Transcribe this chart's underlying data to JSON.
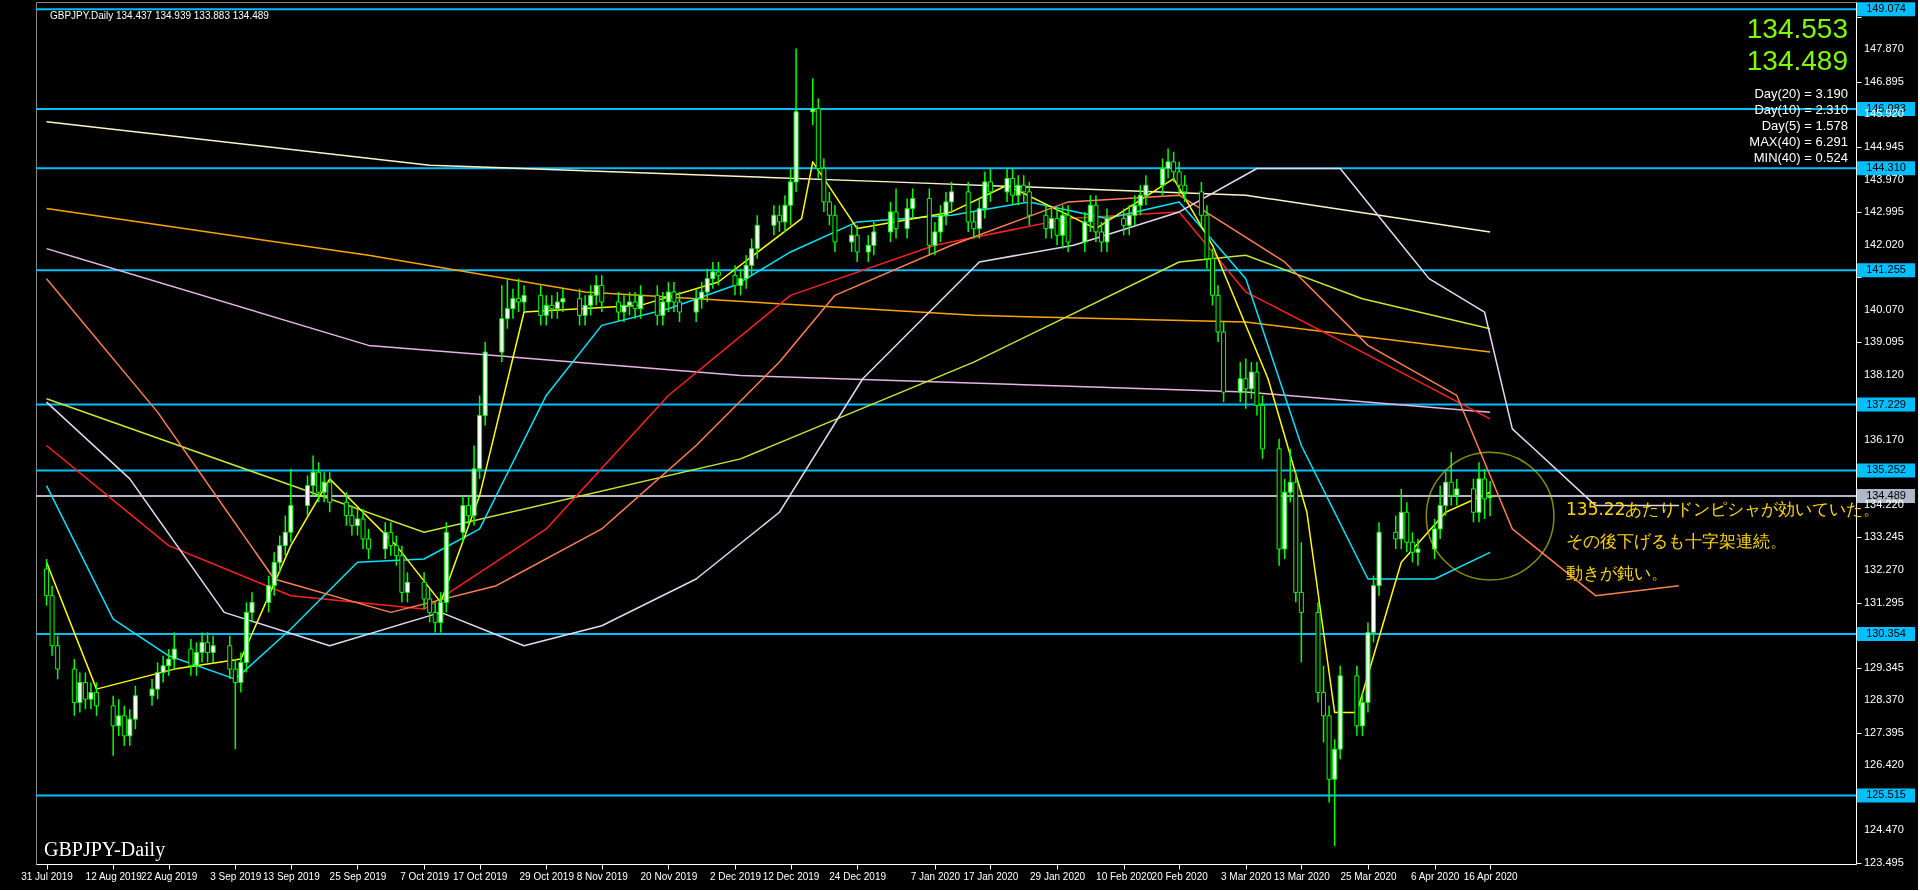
{
  "chart_data": {
    "type": "candlestick",
    "title": "GBPJPY.Daily  134.437 134.939 133.883 134.489",
    "x": [
      "2019-07-31",
      "2019-08-01",
      "2019-08-02",
      "2019-08-05",
      "2019-08-06",
      "2019-08-07",
      "2019-08-08",
      "2019-08-09",
      "2019-08-12",
      "2019-08-13",
      "2019-08-14",
      "2019-08-15",
      "2019-08-16",
      "2019-08-19",
      "2019-08-20",
      "2019-08-21",
      "2019-08-22",
      "2019-08-23",
      "2019-08-26",
      "2019-08-27",
      "2019-08-28",
      "2019-08-29",
      "2019-08-30",
      "2019-09-02",
      "2019-09-03",
      "2019-09-04",
      "2019-09-05",
      "2019-09-06",
      "2019-09-09",
      "2019-09-10",
      "2019-09-11",
      "2019-09-12",
      "2019-09-13",
      "2019-09-16",
      "2019-09-17",
      "2019-09-18",
      "2019-09-19",
      "2019-09-20",
      "2019-09-23",
      "2019-09-24",
      "2019-09-25",
      "2019-09-26",
      "2019-09-27",
      "2019-09-30",
      "2019-10-01",
      "2019-10-02",
      "2019-10-03",
      "2019-10-04",
      "2019-10-07",
      "2019-10-08",
      "2019-10-09",
      "2019-10-10",
      "2019-10-11",
      "2019-10-14",
      "2019-10-15",
      "2019-10-16",
      "2019-10-17",
      "2019-10-18",
      "2019-10-21",
      "2019-10-22",
      "2019-10-23",
      "2019-10-24",
      "2019-10-25",
      "2019-10-28",
      "2019-10-29",
      "2019-10-30",
      "2019-10-31",
      "2019-11-01",
      "2019-11-04",
      "2019-11-05",
      "2019-11-06",
      "2019-11-07",
      "2019-11-08",
      "2019-11-11",
      "2019-11-12",
      "2019-11-13",
      "2019-11-14",
      "2019-11-15",
      "2019-11-18",
      "2019-11-19",
      "2019-11-20",
      "2019-11-21",
      "2019-11-22",
      "2019-11-25",
      "2019-11-26",
      "2019-11-27",
      "2019-11-28",
      "2019-11-29",
      "2019-12-02",
      "2019-12-03",
      "2019-12-04",
      "2019-12-05",
      "2019-12-06",
      "2019-12-09",
      "2019-12-10",
      "2019-12-11",
      "2019-12-12",
      "2019-12-13",
      "2019-12-16",
      "2019-12-17",
      "2019-12-18",
      "2019-12-19",
      "2019-12-20",
      "2019-12-23",
      "2019-12-24",
      "2019-12-26",
      "2019-12-27",
      "2019-12-30",
      "2019-12-31",
      "2020-01-02",
      "2020-01-03",
      "2020-01-06",
      "2020-01-07",
      "2020-01-08",
      "2020-01-09",
      "2020-01-10",
      "2020-01-13",
      "2020-01-14",
      "2020-01-15",
      "2020-01-16",
      "2020-01-17",
      "2020-01-20",
      "2020-01-21",
      "2020-01-22",
      "2020-01-23",
      "2020-01-24",
      "2020-01-27",
      "2020-01-28",
      "2020-01-29",
      "2020-01-30",
      "2020-01-31",
      "2020-02-03",
      "2020-02-04",
      "2020-02-05",
      "2020-02-06",
      "2020-02-07",
      "2020-02-10",
      "2020-02-11",
      "2020-02-12",
      "2020-02-13",
      "2020-02-14",
      "2020-02-17",
      "2020-02-18",
      "2020-02-19",
      "2020-02-20",
      "2020-02-21",
      "2020-02-24",
      "2020-02-25",
      "2020-02-26",
      "2020-02-27",
      "2020-02-28",
      "2020-03-02",
      "2020-03-03",
      "2020-03-04",
      "2020-03-05",
      "2020-03-06",
      "2020-03-09",
      "2020-03-10",
      "2020-03-11",
      "2020-03-12",
      "2020-03-13",
      "2020-03-16",
      "2020-03-17",
      "2020-03-18",
      "2020-03-19",
      "2020-03-20",
      "2020-03-23",
      "2020-03-24",
      "2020-03-25",
      "2020-03-26",
      "2020-03-27",
      "2020-03-30",
      "2020-03-31",
      "2020-04-01",
      "2020-04-02",
      "2020-04-03",
      "2020-04-06",
      "2020-04-07",
      "2020-04-08",
      "2020-04-09",
      "2020-04-10",
      "2020-04-13",
      "2020-04-14",
      "2020-04-15",
      "2020-04-16"
    ],
    "ohlc": [
      [
        132.3,
        132.6,
        131.2,
        131.5
      ],
      [
        131.5,
        131.8,
        129.7,
        130.0
      ],
      [
        130.0,
        130.3,
        129.0,
        129.3
      ],
      [
        129.3,
        129.6,
        127.9,
        128.3
      ],
      [
        128.3,
        129.2,
        128.0,
        128.9
      ],
      [
        128.9,
        129.2,
        128.1,
        128.4
      ],
      [
        128.4,
        128.9,
        128.1,
        128.6
      ],
      [
        128.6,
        128.9,
        127.9,
        128.2
      ],
      [
        128.2,
        128.5,
        126.7,
        127.6
      ],
      [
        127.6,
        128.4,
        127.3,
        127.9
      ],
      [
        127.9,
        128.2,
        127.0,
        127.3
      ],
      [
        127.3,
        128.1,
        127.0,
        127.8
      ],
      [
        127.8,
        128.8,
        127.5,
        128.5
      ],
      [
        128.5,
        129.0,
        128.2,
        128.7
      ],
      [
        128.7,
        129.5,
        128.4,
        129.2
      ],
      [
        129.2,
        129.7,
        128.9,
        129.4
      ],
      [
        129.4,
        129.9,
        129.1,
        129.6
      ],
      [
        129.6,
        130.4,
        129.3,
        129.9
      ],
      [
        129.9,
        130.2,
        129.1,
        129.4
      ],
      [
        129.4,
        130.1,
        129.1,
        129.8
      ],
      [
        129.8,
        130.4,
        129.5,
        130.1
      ],
      [
        130.1,
        130.4,
        129.5,
        129.8
      ],
      [
        129.8,
        130.3,
        129.5,
        130.0
      ],
      [
        130.0,
        130.3,
        129.0,
        129.3
      ],
      [
        129.3,
        129.6,
        126.9,
        128.9
      ],
      [
        128.9,
        129.8,
        128.6,
        129.5
      ],
      [
        129.5,
        131.3,
        129.2,
        131.0
      ],
      [
        131.0,
        131.6,
        130.7,
        131.3
      ],
      [
        131.3,
        132.1,
        131.0,
        131.8
      ],
      [
        131.8,
        132.8,
        131.5,
        132.5
      ],
      [
        132.5,
        133.3,
        132.2,
        133.0
      ],
      [
        133.0,
        133.9,
        132.7,
        133.4
      ],
      [
        133.4,
        135.3,
        133.1,
        134.2
      ],
      [
        134.2,
        135.1,
        133.9,
        134.8
      ],
      [
        134.8,
        135.7,
        134.5,
        135.2
      ],
      [
        135.2,
        135.5,
        134.3,
        134.6
      ],
      [
        134.6,
        135.2,
        134.3,
        134.9
      ],
      [
        134.9,
        135.2,
        134.0,
        134.3
      ],
      [
        134.3,
        134.6,
        133.6,
        133.9
      ],
      [
        133.9,
        134.2,
        133.3,
        133.6
      ],
      [
        133.6,
        134.1,
        133.3,
        133.8
      ],
      [
        133.8,
        134.1,
        132.9,
        133.2
      ],
      [
        133.2,
        133.5,
        132.6,
        132.9
      ],
      [
        132.9,
        133.7,
        132.6,
        133.4
      ],
      [
        133.4,
        133.7,
        132.7,
        133.0
      ],
      [
        133.0,
        133.3,
        132.4,
        132.7
      ],
      [
        132.7,
        133.0,
        131.3,
        131.6
      ],
      [
        131.6,
        132.2,
        131.3,
        131.9
      ],
      [
        131.9,
        132.2,
        131.1,
        131.4
      ],
      [
        131.4,
        131.7,
        130.7,
        131.0
      ],
      [
        131.0,
        131.3,
        130.4,
        130.7
      ],
      [
        130.7,
        131.6,
        130.4,
        131.3
      ],
      [
        131.3,
        133.7,
        131.0,
        133.4
      ],
      [
        133.4,
        134.5,
        133.1,
        134.2
      ],
      [
        134.2,
        134.5,
        133.6,
        133.9
      ],
      [
        133.9,
        136.0,
        133.6,
        135.3
      ],
      [
        135.3,
        137.5,
        135.0,
        136.9
      ],
      [
        136.9,
        139.1,
        136.6,
        138.8
      ],
      [
        138.8,
        140.8,
        138.5,
        139.8
      ],
      [
        139.8,
        141.0,
        139.5,
        140.1
      ],
      [
        140.1,
        140.7,
        139.8,
        140.4
      ],
      [
        140.4,
        141.0,
        140.0,
        140.3
      ],
      [
        140.3,
        140.8,
        140.0,
        140.5
      ],
      [
        140.5,
        140.8,
        139.6,
        139.9
      ],
      [
        139.9,
        140.5,
        139.6,
        140.2
      ],
      [
        140.2,
        140.5,
        139.8,
        140.1
      ],
      [
        140.1,
        140.6,
        139.8,
        140.3
      ],
      [
        140.3,
        140.7,
        140.0,
        140.4
      ],
      [
        140.4,
        140.7,
        139.6,
        139.9
      ],
      [
        139.9,
        140.5,
        139.6,
        140.2
      ],
      [
        140.2,
        140.8,
        139.9,
        140.5
      ],
      [
        140.5,
        141.1,
        140.2,
        140.8
      ],
      [
        140.8,
        141.1,
        140.0,
        140.3
      ],
      [
        140.3,
        140.6,
        139.7,
        140.0
      ],
      [
        140.0,
        140.5,
        139.7,
        140.2
      ],
      [
        140.2,
        140.6,
        139.9,
        140.3
      ],
      [
        140.3,
        140.6,
        139.8,
        140.1
      ],
      [
        140.1,
        140.8,
        139.8,
        140.5
      ],
      [
        140.5,
        140.8,
        139.6,
        139.9
      ],
      [
        139.9,
        140.6,
        139.6,
        140.3
      ],
      [
        140.3,
        140.9,
        140.0,
        140.6
      ],
      [
        140.6,
        140.9,
        140.0,
        140.3
      ],
      [
        140.3,
        140.6,
        139.7,
        140.0
      ],
      [
        140.0,
        140.7,
        139.7,
        140.4
      ],
      [
        140.4,
        140.9,
        140.1,
        140.6
      ],
      [
        140.6,
        141.3,
        140.3,
        141.0
      ],
      [
        141.0,
        141.5,
        140.7,
        141.2
      ],
      [
        141.2,
        141.5,
        140.8,
        141.1
      ],
      [
        141.1,
        141.4,
        140.5,
        140.8
      ],
      [
        140.8,
        141.3,
        140.5,
        141.0
      ],
      [
        141.0,
        141.7,
        140.7,
        141.4
      ],
      [
        141.4,
        142.2,
        141.1,
        141.9
      ],
      [
        141.9,
        142.9,
        141.6,
        142.6
      ],
      [
        142.6,
        143.2,
        142.3,
        142.9
      ],
      [
        142.9,
        143.2,
        142.4,
        142.7
      ],
      [
        142.7,
        143.5,
        142.4,
        143.2
      ],
      [
        143.2,
        144.3,
        142.6,
        143.9
      ],
      [
        143.9,
        147.9,
        143.6,
        146.0
      ],
      [
        146.0,
        147.0,
        145.6,
        146.1
      ],
      [
        146.1,
        146.4,
        144.0,
        144.3
      ],
      [
        144.3,
        144.6,
        143.0,
        143.3
      ],
      [
        143.3,
        143.6,
        142.6,
        142.9
      ],
      [
        142.9,
        143.2,
        141.8,
        142.1
      ],
      [
        142.1,
        142.6,
        141.8,
        142.3
      ],
      [
        142.3,
        142.6,
        141.5,
        141.8
      ],
      [
        141.8,
        142.3,
        141.5,
        142.0
      ],
      [
        142.0,
        142.7,
        141.7,
        142.4
      ],
      [
        142.4,
        143.3,
        142.1,
        143.0
      ],
      [
        143.0,
        143.7,
        142.2,
        142.5
      ],
      [
        142.5,
        143.4,
        142.2,
        143.1
      ],
      [
        143.1,
        143.7,
        142.8,
        143.4
      ],
      [
        143.4,
        143.7,
        141.7,
        142.0
      ],
      [
        142.0,
        142.7,
        141.7,
        142.4
      ],
      [
        142.4,
        143.2,
        142.1,
        142.9
      ],
      [
        142.9,
        143.6,
        142.6,
        143.3
      ],
      [
        143.3,
        143.9,
        143.0,
        143.6
      ],
      [
        143.6,
        143.9,
        142.4,
        142.7
      ],
      [
        142.7,
        143.0,
        142.2,
        142.5
      ],
      [
        142.5,
        143.4,
        142.2,
        143.1
      ],
      [
        143.1,
        144.2,
        142.8,
        143.9
      ],
      [
        143.9,
        144.3,
        143.3,
        143.6
      ],
      [
        143.6,
        144.3,
        143.3,
        144.0
      ],
      [
        144.0,
        144.3,
        143.2,
        143.5
      ],
      [
        143.5,
        144.1,
        143.2,
        143.8
      ],
      [
        143.8,
        144.1,
        143.3,
        143.6
      ],
      [
        143.6,
        143.9,
        142.6,
        142.9
      ],
      [
        142.9,
        143.2,
        142.2,
        142.5
      ],
      [
        142.5,
        143.1,
        142.2,
        142.8
      ],
      [
        142.8,
        143.1,
        142.0,
        142.3
      ],
      [
        142.3,
        143.2,
        141.9,
        142.9
      ],
      [
        142.9,
        143.2,
        141.8,
        142.1
      ],
      [
        142.1,
        143.0,
        141.8,
        142.7
      ],
      [
        142.7,
        143.5,
        142.4,
        143.2
      ],
      [
        143.2,
        143.5,
        142.1,
        142.4
      ],
      [
        142.4,
        142.7,
        141.8,
        142.1
      ],
      [
        142.1,
        143.1,
        141.8,
        142.8
      ],
      [
        142.8,
        143.1,
        142.3,
        142.6
      ],
      [
        142.6,
        143.2,
        142.3,
        142.9
      ],
      [
        142.9,
        143.5,
        142.6,
        143.2
      ],
      [
        143.2,
        143.8,
        142.9,
        143.5
      ],
      [
        143.5,
        144.1,
        143.2,
        143.8
      ],
      [
        143.8,
        144.6,
        143.5,
        144.3
      ],
      [
        144.3,
        144.9,
        144.0,
        144.5
      ],
      [
        144.5,
        144.8,
        143.9,
        144.2
      ],
      [
        144.2,
        144.5,
        143.5,
        143.8
      ],
      [
        143.8,
        144.1,
        143.3,
        143.6
      ],
      [
        143.6,
        143.9,
        142.6,
        142.9
      ],
      [
        142.9,
        143.2,
        141.3,
        141.6
      ],
      [
        141.6,
        141.9,
        140.2,
        140.5
      ],
      [
        140.5,
        140.8,
        139.1,
        139.4
      ],
      [
        139.4,
        139.7,
        137.3,
        137.6
      ],
      [
        137.6,
        138.5,
        137.3,
        138.0
      ],
      [
        138.0,
        138.6,
        137.1,
        137.7
      ],
      [
        137.7,
        138.5,
        137.4,
        138.2
      ],
      [
        138.2,
        138.5,
        136.9,
        137.2
      ],
      [
        137.2,
        137.5,
        135.6,
        135.9
      ],
      [
        135.9,
        136.2,
        132.4,
        132.9
      ],
      [
        132.9,
        135.0,
        132.6,
        134.6
      ],
      [
        134.6,
        135.9,
        134.3,
        134.9
      ],
      [
        134.9,
        135.2,
        131.3,
        131.6
      ],
      [
        131.6,
        133.1,
        129.5,
        131.0
      ],
      [
        131.0,
        131.3,
        128.3,
        128.6
      ],
      [
        128.6,
        129.4,
        127.1,
        127.9
      ],
      [
        127.9,
        128.2,
        125.3,
        126.0
      ],
      [
        126.0,
        127.2,
        124.0,
        126.9
      ],
      [
        126.9,
        129.4,
        126.6,
        129.1
      ],
      [
        129.1,
        129.4,
        127.3,
        127.6
      ],
      [
        127.6,
        128.6,
        127.3,
        128.3
      ],
      [
        128.3,
        130.7,
        128.0,
        130.4
      ],
      [
        130.4,
        132.1,
        130.1,
        131.8
      ],
      [
        131.8,
        133.7,
        131.5,
        133.4
      ],
      [
        133.4,
        133.9,
        132.9,
        133.2
      ],
      [
        133.2,
        134.7,
        132.9,
        134.0
      ],
      [
        134.0,
        134.3,
        132.8,
        133.1
      ],
      [
        133.1,
        133.4,
        132.5,
        132.8
      ],
      [
        132.8,
        133.2,
        132.4,
        132.9
      ],
      [
        132.9,
        133.8,
        132.6,
        133.5
      ],
      [
        133.5,
        134.8,
        133.2,
        134.2
      ],
      [
        134.2,
        135.2,
        133.9,
        134.9
      ],
      [
        134.9,
        135.8,
        134.2,
        134.5
      ],
      [
        134.5,
        135.0,
        134.2,
        134.7
      ],
      [
        134.7,
        135.0,
        133.7,
        134.0
      ],
      [
        134.0,
        135.5,
        133.7,
        135.0
      ],
      [
        135.0,
        135.3,
        133.8,
        134.4
      ],
      [
        134.437,
        134.939,
        133.883,
        134.489
      ]
    ],
    "color": "#00ff00",
    "series": [
      {
        "type": "line",
        "color": "#fff5c8",
        "x": [
          "2019-07-31",
          "2019-10-08",
          "2019-12-30",
          "2020-03-03",
          "2020-04-16"
        ],
        "values": [
          145.7,
          144.4,
          143.9,
          143.5,
          142.4
        ]
      },
      {
        "type": "line",
        "color": "#e8b4e8",
        "x": [
          "2019-07-31",
          "2019-09-27",
          "2019-12-03",
          "2020-03-03",
          "2020-04-16"
        ],
        "values": [
          141.9,
          139.0,
          138.1,
          137.6,
          137.0
        ]
      },
      {
        "type": "line",
        "color": "#ffa500",
        "x": [
          "2019-07-31",
          "2019-09-27",
          "2019-11-05",
          "2020-01-14",
          "2020-03-03",
          "2020-04-16"
        ],
        "values": [
          143.1,
          141.7,
          140.6,
          139.9,
          139.7,
          138.8
        ]
      },
      {
        "type": "line",
        "color": "#c8e632",
        "x": [
          "2019-07-31",
          "2019-10-07",
          "2019-12-03",
          "2020-01-14",
          "2020-02-20",
          "2020-03-03",
          "2020-03-24",
          "2020-04-16"
        ],
        "values": [
          137.4,
          133.4,
          135.6,
          138.5,
          141.5,
          141.7,
          140.4,
          139.5
        ]
      },
      {
        "type": "line",
        "color": "#ff2020",
        "x": [
          "2019-07-31",
          "2019-08-22",
          "2019-09-13",
          "2019-10-07",
          "2019-10-29",
          "2019-11-20",
          "2019-12-12",
          "2020-01-07",
          "2020-01-31",
          "2020-02-20",
          "2020-03-03",
          "2020-03-24",
          "2020-04-16"
        ],
        "values": [
          136.0,
          133.0,
          131.5,
          131.1,
          133.5,
          137.5,
          140.5,
          142.0,
          142.8,
          143.0,
          140.6,
          138.8,
          136.8
        ]
      },
      {
        "type": "line",
        "color": "#00e5ff",
        "x": [
          "2019-07-31",
          "2019-08-12",
          "2019-08-22",
          "2019-09-03",
          "2019-09-13",
          "2019-09-25",
          "2019-10-07",
          "2019-10-17",
          "2019-10-29",
          "2019-11-08",
          "2019-11-20",
          "2019-12-02",
          "2019-12-12",
          "2019-12-24",
          "2020-01-10",
          "2020-01-24",
          "2020-02-07",
          "2020-02-20",
          "2020-03-03",
          "2020-03-13",
          "2020-03-25",
          "2020-04-06",
          "2020-04-16"
        ],
        "values": [
          134.8,
          130.8,
          129.7,
          129.0,
          130.5,
          132.5,
          132.6,
          133.5,
          137.5,
          139.6,
          140.1,
          140.8,
          141.8,
          142.7,
          142.9,
          143.3,
          142.8,
          143.3,
          141.0,
          136.0,
          132.0,
          132.0,
          132.8
        ]
      },
      {
        "type": "line",
        "color": "#ffff00",
        "x": [
          "2019-07-31",
          "2019-08-09",
          "2019-08-23",
          "2019-09-04",
          "2019-09-13",
          "2019-09-20",
          "2019-10-02",
          "2019-10-10",
          "2019-10-17",
          "2019-10-25",
          "2019-11-15",
          "2019-11-29",
          "2019-12-14",
          "2019-12-16",
          "2019-12-24",
          "2020-01-10",
          "2020-01-20",
          "2020-02-05",
          "2020-02-19",
          "2020-02-26",
          "2020-03-07",
          "2020-03-14",
          "2020-03-19",
          "2020-03-23",
          "2020-03-31",
          "2020-04-08",
          "2020-04-16"
        ],
        "values": [
          132.5,
          128.7,
          129.3,
          129.6,
          133.0,
          135.0,
          133.0,
          131.3,
          134.5,
          140.0,
          140.2,
          140.9,
          142.8,
          144.5,
          142.5,
          143.0,
          143.8,
          142.5,
          144.0,
          142.0,
          138.0,
          134.0,
          128.0,
          128.0,
          132.5,
          134.0,
          134.6
        ]
      },
      {
        "type": "line",
        "color": "#ff7f50",
        "x": [
          "2019-07-31",
          "2019-08-20",
          "2019-09-10",
          "2019-10-01",
          "2019-10-20",
          "2019-11-08",
          "2019-11-25",
          "2019-12-10",
          "2019-12-20",
          "2020-01-10",
          "2020-01-31",
          "2020-02-20",
          "2020-03-10",
          "2020-03-25",
          "2020-04-10",
          "2020-04-20",
          "2020-05-05",
          "2020-05-20"
        ],
        "values": [
          141.0,
          137.0,
          132.0,
          131.0,
          131.8,
          133.5,
          136.0,
          138.5,
          140.5,
          142.0,
          143.3,
          143.5,
          141.5,
          139.0,
          137.5,
          133.5,
          131.5,
          131.8
        ]
      },
      {
        "type": "line",
        "color": "#e6d8f0",
        "x": [
          "2019-07-31",
          "2019-08-15",
          "2019-09-01",
          "2019-09-20",
          "2019-10-10",
          "2019-10-25",
          "2019-11-08",
          "2019-11-25",
          "2019-12-10",
          "2019-12-25",
          "2020-01-15",
          "2020-02-01",
          "2020-02-20",
          "2020-03-05",
          "2020-03-20",
          "2020-04-05",
          "2020-04-15",
          "2020-04-20",
          "2020-05-05",
          "2020-05-20"
        ],
        "values": [
          137.3,
          135.0,
          131.0,
          130.0,
          131.0,
          130.0,
          130.6,
          132.0,
          134.0,
          138.0,
          141.5,
          142.0,
          143.0,
          144.3,
          144.3,
          141.0,
          140.0,
          136.5,
          134.2,
          134.2
        ]
      }
    ],
    "ref_lines": [
      {
        "axis": "y",
        "value": 149.074,
        "label": "149.074",
        "color": "#00bfff"
      },
      {
        "axis": "y",
        "value": 146.083,
        "label": "146.083",
        "color": "#00bfff"
      },
      {
        "axis": "y",
        "value": 144.31,
        "label": "144.310",
        "color": "#00bfff"
      },
      {
        "axis": "y",
        "value": 141.255,
        "label": "141.255",
        "color": "#00bfff"
      },
      {
        "axis": "y",
        "value": 137.229,
        "label": "137.229",
        "color": "#00bfff"
      },
      {
        "axis": "y",
        "value": 135.252,
        "label": "135.252",
        "color": "#00bfff"
      },
      {
        "axis": "y",
        "value": 134.489,
        "label": "134.489",
        "color": "#b0b8c8"
      },
      {
        "axis": "y",
        "value": 130.354,
        "label": "130.354",
        "color": "#00bfff"
      },
      {
        "axis": "y",
        "value": 125.515,
        "label": "125.515",
        "color": "#00bfff"
      }
    ],
    "annotations": [
      "134.553",
      "134.489",
      "Day(20) = 3.190",
      "Day(10) = 2.310",
      "Day(5) = 1.578",
      "MAX(40) = 6.291",
      "MIN(40) = 0.524",
      "135.22あたりドンピシャが効いていた。",
      "その後下げるも十字架連続。",
      "動きが鈍い。",
      "GBPJPY-Daily"
    ],
    "xlim": [
      "2019-07-30",
      "2020-06-20"
    ],
    "xticks": [
      {
        "value": "2019-07-31",
        "label": "31 Jul 2019"
      },
      {
        "value": "2019-08-12",
        "label": "12 Aug 2019"
      },
      {
        "value": "2019-08-22",
        "label": "22 Aug 2019"
      },
      {
        "value": "2019-09-03",
        "label": "3 Sep 2019"
      },
      {
        "value": "2019-09-13",
        "label": "13 Sep 2019"
      },
      {
        "value": "2019-09-25",
        "label": "25 Sep 2019"
      },
      {
        "value": "2019-10-07",
        "label": "7 Oct 2019"
      },
      {
        "value": "2019-10-17",
        "label": "17 Oct 2019"
      },
      {
        "value": "2019-10-29",
        "label": "29 Oct 2019"
      },
      {
        "value": "2019-11-08",
        "label": "8 Nov 2019"
      },
      {
        "value": "2019-11-20",
        "label": "20 Nov 2019"
      },
      {
        "value": "2019-12-02",
        "label": "2 Dec 2019"
      },
      {
        "value": "2019-12-12",
        "label": "12 Dec 2019"
      },
      {
        "value": "2019-12-24",
        "label": "24 Dec 2019"
      },
      {
        "value": "2020-01-07",
        "label": "7 Jan 2020"
      },
      {
        "value": "2020-01-17",
        "label": "17 Jan 2020"
      },
      {
        "value": "2020-01-29",
        "label": "29 Jan 2020"
      },
      {
        "value": "2020-02-10",
        "label": "10 Feb 2020"
      },
      {
        "value": "2020-02-20",
        "label": "20 Feb 2020"
      },
      {
        "value": "2020-03-03",
        "label": "3 Mar 2020"
      },
      {
        "value": "2020-03-13",
        "label": "13 Mar 2020"
      },
      {
        "value": "2020-03-25",
        "label": "25 Mar 2020"
      },
      {
        "value": "2020-04-06",
        "label": "6 Apr 2020"
      },
      {
        "value": "2020-04-16",
        "label": "16 Apr 2020"
      }
    ],
    "ylim": [
      123.46,
      149.29
    ],
    "yticks": [
      {
        "value": 148.845,
        "label": null
      },
      {
        "value": 147.87,
        "label": "147.870"
      },
      146.895,
      {
        "value": 145.92,
        "label": "145.920"
      },
      144.945,
      {
        "value": 143.97,
        "label": "143.970"
      },
      142.995,
      {
        "value": 142.02,
        "label": "142.020"
      },
      {
        "value": 141.045,
        "label": null
      },
      {
        "value": 140.07,
        "label": "140.070"
      },
      139.095,
      {
        "value": 138.12,
        "label": "138.120"
      },
      {
        "value": 137.145,
        "label": null
      },
      {
        "value": 136.17,
        "label": "136.170"
      },
      {
        "value": 135.195,
        "label": null
      },
      {
        "value": 134.22,
        "label": "134.220"
      },
      133.245,
      {
        "value": 132.27,
        "label": "132.270"
      },
      131.295,
      {
        "value": 130.32,
        "label": null
      },
      129.345,
      {
        "value": 128.37,
        "label": "128.370"
      },
      127.395,
      {
        "value": 126.42,
        "label": "126.420"
      },
      {
        "value": 125.445,
        "label": null
      },
      {
        "value": 124.47,
        "label": "124.470"
      },
      123.495
    ],
    "grid": false
  }
}
